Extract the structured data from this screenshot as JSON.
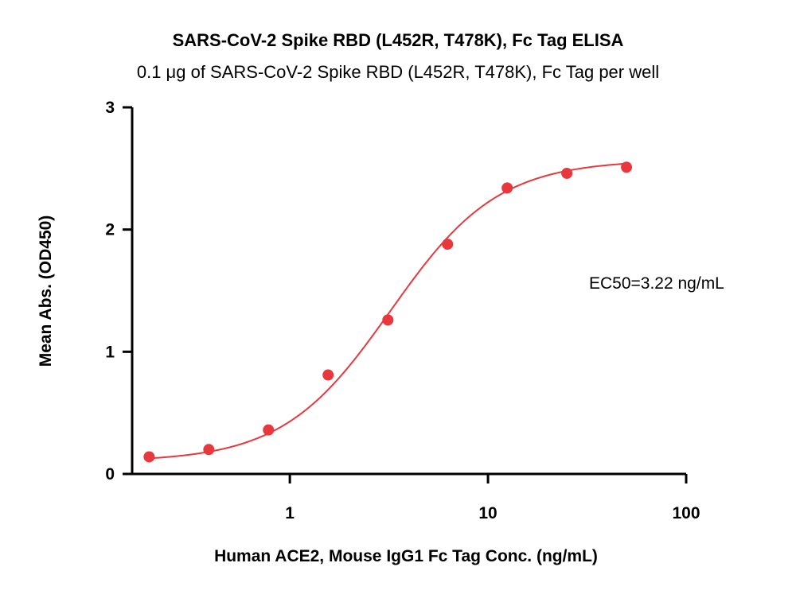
{
  "chart_data": {
    "type": "scatter",
    "title": "SARS-CoV-2 Spike RBD (L452R, T478K), Fc Tag ELISA",
    "subtitle": "0.1 μg of SARS-CoV-2 Spike RBD (L452R, T478K), Fc Tag per well",
    "xlabel": "Human ACE2, Mouse IgG1 Fc Tag Conc. (ng/mL)",
    "ylabel": "Mean Abs. (OD450)",
    "x_scale": "log",
    "xlim": [
      0.16,
      100
    ],
    "ylim": [
      0,
      3
    ],
    "x_ticks": [
      1,
      10,
      100
    ],
    "x_tick_labels": [
      "1",
      "10",
      "100"
    ],
    "y_ticks": [
      0,
      1,
      2,
      3
    ],
    "y_tick_labels": [
      "0",
      "1",
      "2",
      "3"
    ],
    "grid": false,
    "color": "#e8383d",
    "series": [
      {
        "x": [
          0.195,
          0.39,
          0.78,
          1.56,
          3.125,
          6.25,
          12.5,
          25,
          50
        ],
        "y": [
          0.14,
          0.2,
          0.36,
          0.81,
          1.26,
          1.88,
          2.34,
          2.46,
          2.51
        ]
      }
    ],
    "fit_curve": {
      "model": "4PL",
      "bottom": 0.1,
      "top": 2.57,
      "ec50": 3.22,
      "hill": 1.6
    },
    "annotation": "EC50=3.22 ng/mL"
  }
}
